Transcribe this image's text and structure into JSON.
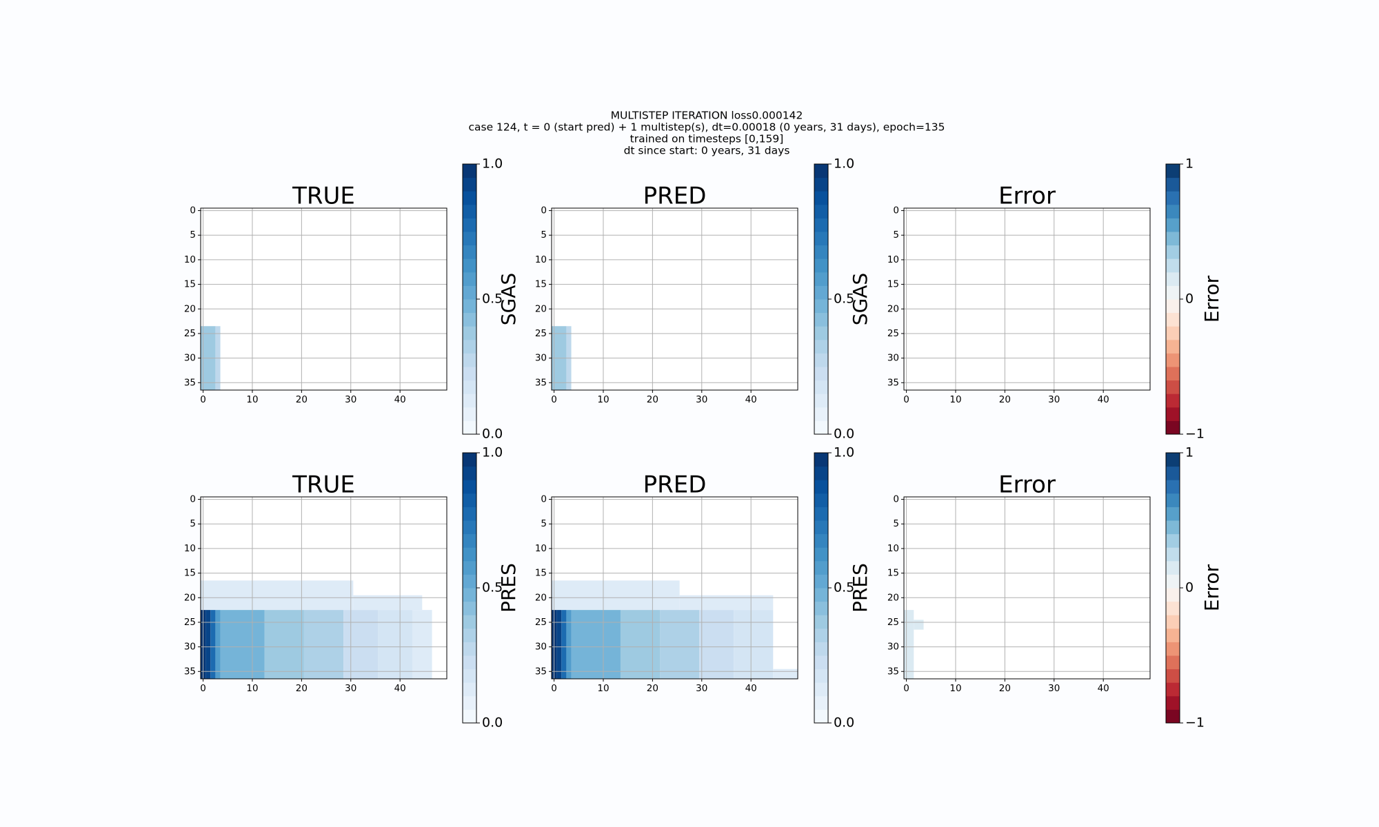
{
  "suptitle": [
    "MULTISTEP ITERATION loss0.000142",
    "case 124, t = 0 (start pred) + 1 multistep(s), dt=0.00018 (0 years, 31 days), epoch=135",
    "trained on timesteps [0,159]",
    "dt since start: 0 years, 31 days"
  ],
  "chart_data": [
    {
      "type": "heatmap",
      "title": "TRUE",
      "xlim": [
        -0.5,
        49.5
      ],
      "ylim": [
        36.5,
        -0.5
      ],
      "xticks": [
        0,
        10,
        20,
        30,
        40
      ],
      "yticks": [
        0,
        5,
        10,
        15,
        20,
        25,
        30,
        35
      ],
      "grid": true,
      "colorbar": {
        "label": "SGAS",
        "lim": [
          0,
          1
        ],
        "ticks": [
          {
            "value": 0,
            "label": "0.0"
          },
          {
            "value": 0.5,
            "label": "0.5"
          },
          {
            "value": 1,
            "label": "1.0"
          }
        ],
        "levels": 20,
        "colormap": [
          "#f7fbff",
          "#deebf7",
          "#c6dbef",
          "#9ecae1",
          "#6baed6",
          "#4292c6",
          "#2171b5",
          "#08519c",
          "#08306b"
        ]
      },
      "cells": [
        {
          "x": [
            -0.5,
            2.5
          ],
          "y": [
            23.5,
            36.5
          ],
          "value": 0.38
        },
        {
          "x": [
            2.5,
            3.5
          ],
          "y": [
            23.5,
            36.5
          ],
          "value": 0.25
        }
      ]
    },
    {
      "type": "heatmap",
      "title": "PRED",
      "xlim": [
        -0.5,
        49.5
      ],
      "ylim": [
        36.5,
        -0.5
      ],
      "xticks": [
        0,
        10,
        20,
        30,
        40
      ],
      "yticks": [
        0,
        5,
        10,
        15,
        20,
        25,
        30,
        35
      ],
      "grid": true,
      "colorbar": {
        "label": "SGAS",
        "lim": [
          0,
          1
        ],
        "ticks": [
          {
            "value": 0,
            "label": "0.0"
          },
          {
            "value": 0.5,
            "label": "0.5"
          },
          {
            "value": 1,
            "label": "1.0"
          }
        ],
        "levels": 20,
        "colormap": [
          "#f7fbff",
          "#deebf7",
          "#c6dbef",
          "#9ecae1",
          "#6baed6",
          "#4292c6",
          "#2171b5",
          "#08519c",
          "#08306b"
        ]
      },
      "cells": [
        {
          "x": [
            -0.5,
            2.5
          ],
          "y": [
            23.5,
            36.5
          ],
          "value": 0.38
        },
        {
          "x": [
            2.5,
            3.5
          ],
          "y": [
            23.5,
            36.5
          ],
          "value": 0.27
        }
      ]
    },
    {
      "type": "heatmap",
      "title": "Error",
      "xlim": [
        -0.5,
        49.5
      ],
      "ylim": [
        36.5,
        -0.5
      ],
      "xticks": [
        0,
        10,
        20,
        30,
        40
      ],
      "yticks": [
        0,
        5,
        10,
        15,
        20,
        25,
        30,
        35
      ],
      "grid": true,
      "colorbar": {
        "label": "Error",
        "lim": [
          -1,
          1
        ],
        "ticks": [
          {
            "value": -1,
            "label": "−1"
          },
          0,
          1
        ],
        "levels": 20,
        "colormap": [
          "#67001f",
          "#b2182b",
          "#d6604d",
          "#f4a582",
          "#fddbc7",
          "#f7f7f7",
          "#d1e5f0",
          "#92c5de",
          "#4393c3",
          "#2166ac",
          "#053061"
        ]
      },
      "cells": []
    },
    {
      "type": "heatmap",
      "title": "TRUE",
      "xlim": [
        -0.5,
        49.5
      ],
      "ylim": [
        36.5,
        -0.5
      ],
      "xticks": [
        0,
        10,
        20,
        30,
        40
      ],
      "yticks": [
        0,
        5,
        10,
        15,
        20,
        25,
        30,
        35
      ],
      "grid": true,
      "colorbar": {
        "label": "PRES",
        "lim": [
          0,
          1
        ],
        "ticks": [
          {
            "value": 0,
            "label": "0.0"
          },
          {
            "value": 0.5,
            "label": "0.5"
          },
          {
            "value": 1,
            "label": "1.0"
          }
        ],
        "levels": 20,
        "colormap": [
          "#f7fbff",
          "#deebf7",
          "#c6dbef",
          "#9ecae1",
          "#6baed6",
          "#4292c6",
          "#2171b5",
          "#08519c",
          "#08306b"
        ]
      },
      "cells": [
        {
          "x": [
            -0.5,
            30.5
          ],
          "y": [
            16.5,
            22.5
          ],
          "value": 0.12
        },
        {
          "x": [
            30.5,
            44.5
          ],
          "y": [
            19.5,
            22.5
          ],
          "value": 0.1
        },
        {
          "x": [
            -0.5,
            0.5
          ],
          "y": [
            22.5,
            36.5
          ],
          "value": 0.98
        },
        {
          "x": [
            0.5,
            1.5
          ],
          "y": [
            22.5,
            36.5
          ],
          "value": 0.9
        },
        {
          "x": [
            1.5,
            2.5
          ],
          "y": [
            22.5,
            36.5
          ],
          "value": 0.75
        },
        {
          "x": [
            2.5,
            3.5
          ],
          "y": [
            22.5,
            36.5
          ],
          "value": 0.55
        },
        {
          "x": [
            3.5,
            12.5
          ],
          "y": [
            22.5,
            36.5
          ],
          "value": 0.45
        },
        {
          "x": [
            12.5,
            20.5
          ],
          "y": [
            22.5,
            36.5
          ],
          "value": 0.38
        },
        {
          "x": [
            20.5,
            28.5
          ],
          "y": [
            22.5,
            36.5
          ],
          "value": 0.3
        },
        {
          "x": [
            28.5,
            35.5
          ],
          "y": [
            22.5,
            36.5
          ],
          "value": 0.22
        },
        {
          "x": [
            35.5,
            42.5
          ],
          "y": [
            22.5,
            36.5
          ],
          "value": 0.15
        },
        {
          "x": [
            42.5,
            46.5
          ],
          "y": [
            22.5,
            36.5
          ],
          "value": 0.1
        }
      ]
    },
    {
      "type": "heatmap",
      "title": "PRED",
      "xlim": [
        -0.5,
        49.5
      ],
      "ylim": [
        36.5,
        -0.5
      ],
      "xticks": [
        0,
        10,
        20,
        30,
        40
      ],
      "yticks": [
        0,
        5,
        10,
        15,
        20,
        25,
        30,
        35
      ],
      "grid": true,
      "colorbar": {
        "label": "PRES",
        "lim": [
          0,
          1
        ],
        "ticks": [
          {
            "value": 0,
            "label": "0.0"
          },
          {
            "value": 0.5,
            "label": "0.5"
          },
          {
            "value": 1,
            "label": "1.0"
          }
        ],
        "levels": 20,
        "colormap": [
          "#f7fbff",
          "#deebf7",
          "#c6dbef",
          "#9ecae1",
          "#6baed6",
          "#4292c6",
          "#2171b5",
          "#08519c",
          "#08306b"
        ]
      },
      "cells": [
        {
          "x": [
            -0.5,
            25.5
          ],
          "y": [
            16.5,
            22.5
          ],
          "value": 0.12
        },
        {
          "x": [
            25.5,
            44.5
          ],
          "y": [
            19.5,
            22.5
          ],
          "value": 0.1
        },
        {
          "x": [
            -0.5,
            0.5
          ],
          "y": [
            22.5,
            36.5
          ],
          "value": 0.98
        },
        {
          "x": [
            0.5,
            1.5
          ],
          "y": [
            22.5,
            36.5
          ],
          "value": 0.9
        },
        {
          "x": [
            1.5,
            2.5
          ],
          "y": [
            22.5,
            36.5
          ],
          "value": 0.75
        },
        {
          "x": [
            2.5,
            3.5
          ],
          "y": [
            22.5,
            36.5
          ],
          "value": 0.55
        },
        {
          "x": [
            3.5,
            13.5
          ],
          "y": [
            22.5,
            36.5
          ],
          "value": 0.45
        },
        {
          "x": [
            13.5,
            21.5
          ],
          "y": [
            22.5,
            36.5
          ],
          "value": 0.38
        },
        {
          "x": [
            21.5,
            29.5
          ],
          "y": [
            22.5,
            36.5
          ],
          "value": 0.3
        },
        {
          "x": [
            29.5,
            36.5
          ],
          "y": [
            22.5,
            36.5
          ],
          "value": 0.22
        },
        {
          "x": [
            36.5,
            44.5
          ],
          "y": [
            22.5,
            36.5
          ],
          "value": 0.15
        },
        {
          "x": [
            44.5,
            49.5
          ],
          "y": [
            34.5,
            36.5
          ],
          "value": 0.1
        }
      ]
    },
    {
      "type": "heatmap",
      "title": "Error",
      "xlim": [
        -0.5,
        49.5
      ],
      "ylim": [
        36.5,
        -0.5
      ],
      "xticks": [
        0,
        10,
        20,
        30,
        40
      ],
      "yticks": [
        0,
        5,
        10,
        15,
        20,
        25,
        30,
        35
      ],
      "grid": true,
      "colorbar": {
        "label": "Error",
        "lim": [
          -1,
          1
        ],
        "ticks": [
          {
            "value": -1,
            "label": "−1"
          },
          0,
          1
        ],
        "levels": 20,
        "colormap": [
          "#67001f",
          "#b2182b",
          "#d6604d",
          "#f4a582",
          "#fddbc7",
          "#f7f7f7",
          "#d1e5f0",
          "#92c5de",
          "#4393c3",
          "#2166ac",
          "#053061"
        ]
      },
      "cells": [
        {
          "x": [
            -0.5,
            1.5
          ],
          "y": [
            22.5,
            36.5
          ],
          "value": 0.12
        },
        {
          "x": [
            1.5,
            3.5
          ],
          "y": [
            24.5,
            26.5
          ],
          "value": 0.12
        }
      ]
    }
  ]
}
